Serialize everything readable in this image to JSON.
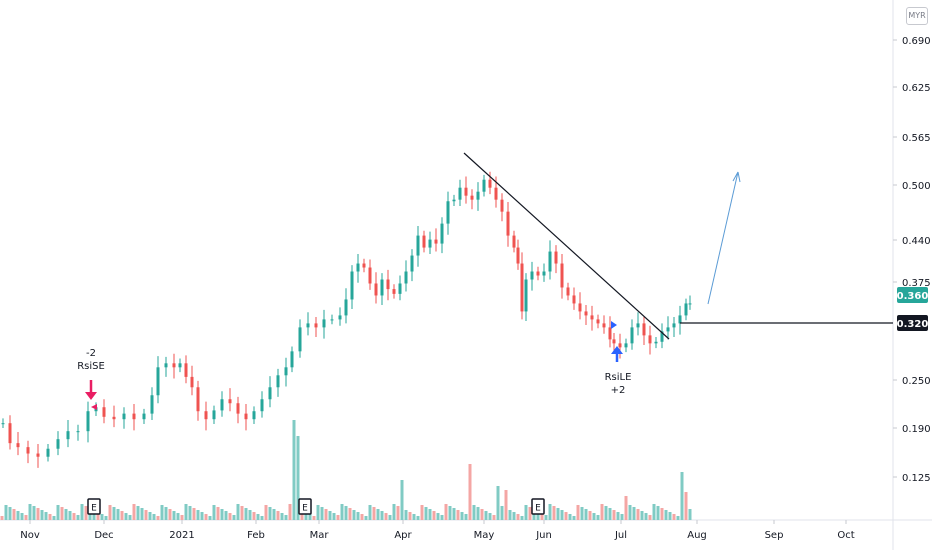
{
  "currency": "MYR",
  "chart_data": {
    "type": "candlestick",
    "y_axis": {
      "position": "right",
      "ticks": [
        "0.690",
        "0.625",
        "0.565",
        "0.500",
        "0.440",
        "0.375",
        "0.250",
        "0.190",
        "0.125"
      ],
      "range": [
        0.07,
        0.72
      ]
    },
    "x_axis": {
      "ticks": [
        "Nov",
        "Dec",
        "2021",
        "Feb",
        "Mar",
        "Apr",
        "May",
        "Jun",
        "Jul",
        "Aug",
        "Sep",
        "Oct"
      ]
    },
    "price_badges": [
      {
        "value": "0.360",
        "style": "last-price",
        "color": "#26a69a"
      },
      {
        "value": "0.320",
        "style": "horizontal-line",
        "color": "#131722"
      }
    ],
    "annotations": [
      {
        "text_top": "-2",
        "text_bottom": "RsiSE",
        "type": "short-signal",
        "color": "#e91e63",
        "date": "late Nov 2020",
        "price": 0.225
      },
      {
        "text_top": "RsiLE",
        "text_bottom": "+2",
        "type": "long-signal",
        "color": "#2962ff",
        "date": "end Jun 2021",
        "price": 0.3
      }
    ],
    "earnings_markers": [
      {
        "label": "E",
        "date": "late Nov 2020"
      },
      {
        "label": "E",
        "date": "late Feb 2021"
      },
      {
        "label": "E",
        "date": "early Jun 2021"
      }
    ],
    "trendlines": [
      {
        "kind": "descending-resistance",
        "color": "#131722",
        "from": {
          "date": "early May 2021",
          "price": 0.54
        },
        "to": {
          "date": "mid Jul 2021",
          "price": 0.305
        }
      },
      {
        "kind": "projection-arrow",
        "color": "#5b9bd5",
        "from": {
          "date": "late Jul 2021",
          "price": 0.358
        },
        "to": {
          "date": "mid Aug 2021",
          "price": 0.51
        }
      },
      {
        "kind": "horizontal-support",
        "color": "#131722",
        "price": 0.32,
        "from_date": "mid Jul 2021"
      }
    ],
    "colors": {
      "up": "#26a69a",
      "down": "#ef5350",
      "volume_up": "#80cbc4",
      "volume_down": "#f4a6a4"
    }
  }
}
